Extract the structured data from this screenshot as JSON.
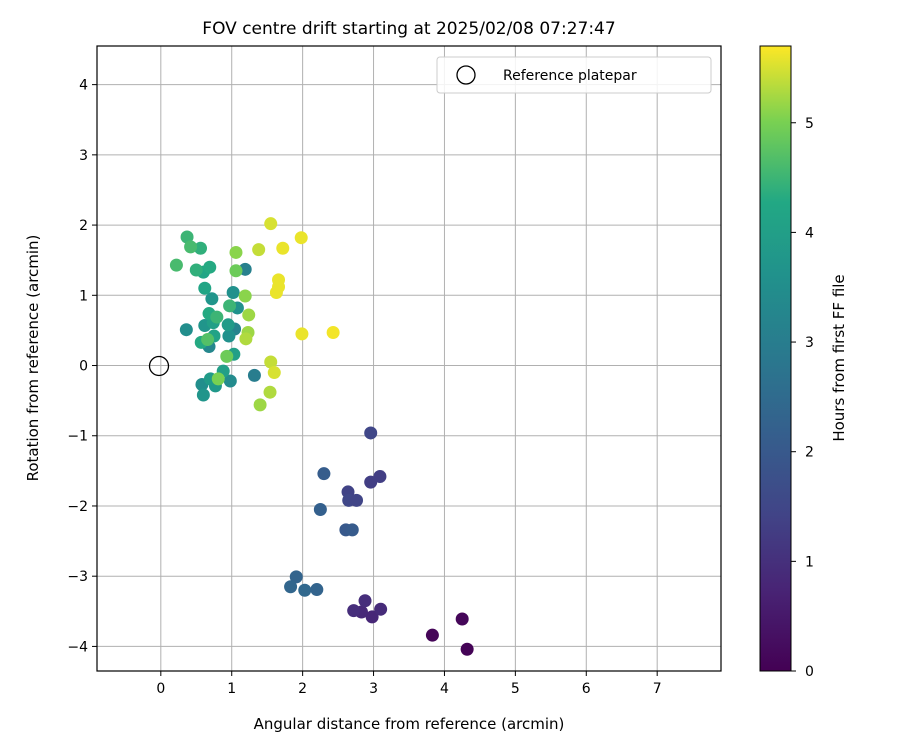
{
  "chart_data": {
    "type": "scatter",
    "title": "FOV centre drift starting at 2025/02/08 07:27:47",
    "xlabel": "Angular distance from reference (arcmin)",
    "ylabel": "Rotation from reference (arcmin)",
    "xlim": [
      -0.9,
      7.9
    ],
    "ylim": [
      -4.35,
      4.55
    ],
    "xticks": [
      0,
      1,
      2,
      3,
      4,
      5,
      6,
      7
    ],
    "yticks": [
      -4,
      -3,
      -2,
      -1,
      0,
      1,
      2,
      3,
      4
    ],
    "grid": true,
    "legend": {
      "placement": "top-right",
      "entries": [
        "Reference platepar"
      ]
    },
    "reference_point": {
      "x": 0,
      "y": 0,
      "label": "Reference platepar"
    },
    "colorbar": {
      "label": "Hours from first FF file",
      "colormap": "viridis",
      "range": [
        0,
        5.7
      ],
      "ticks": [
        0,
        1,
        2,
        3,
        4,
        5
      ]
    },
    "points": [
      {
        "x": 4.32,
        "y": -4.04,
        "c": 0.05
      },
      {
        "x": 3.83,
        "y": -3.84,
        "c": 0.1
      },
      {
        "x": 4.25,
        "y": -3.61,
        "c": 0.12
      },
      {
        "x": 2.98,
        "y": -3.58,
        "c": 0.8
      },
      {
        "x": 3.1,
        "y": -3.47,
        "c": 0.9
      },
      {
        "x": 2.83,
        "y": -3.51,
        "c": 0.85
      },
      {
        "x": 2.72,
        "y": -3.49,
        "c": 0.95
      },
      {
        "x": 2.88,
        "y": -3.35,
        "c": 0.95
      },
      {
        "x": 2.96,
        "y": -0.96,
        "c": 1.5
      },
      {
        "x": 3.09,
        "y": -1.58,
        "c": 1.3
      },
      {
        "x": 2.96,
        "y": -1.66,
        "c": 1.3
      },
      {
        "x": 2.64,
        "y": -1.8,
        "c": 1.4
      },
      {
        "x": 2.65,
        "y": -1.92,
        "c": 1.5
      },
      {
        "x": 2.76,
        "y": -1.92,
        "c": 1.45
      },
      {
        "x": 2.3,
        "y": -1.54,
        "c": 2.1
      },
      {
        "x": 2.25,
        "y": -2.05,
        "c": 2.2
      },
      {
        "x": 2.61,
        "y": -2.34,
        "c": 2.0
      },
      {
        "x": 2.7,
        "y": -2.34,
        "c": 2.05
      },
      {
        "x": 1.91,
        "y": -3.01,
        "c": 2.3
      },
      {
        "x": 1.83,
        "y": -3.15,
        "c": 2.35
      },
      {
        "x": 2.03,
        "y": -3.2,
        "c": 2.4
      },
      {
        "x": 2.2,
        "y": -3.19,
        "c": 2.3
      },
      {
        "x": 1.32,
        "y": -0.14,
        "c": 3.0
      },
      {
        "x": 1.19,
        "y": 1.37,
        "c": 3.1
      },
      {
        "x": 1.04,
        "y": 0.52,
        "c": 3.2
      },
      {
        "x": 0.68,
        "y": 0.27,
        "c": 3.3
      },
      {
        "x": 0.98,
        "y": -0.22,
        "c": 3.4
      },
      {
        "x": 0.58,
        "y": -0.27,
        "c": 3.5
      },
      {
        "x": 0.36,
        "y": 0.51,
        "c": 3.5
      },
      {
        "x": 0.96,
        "y": 0.42,
        "c": 3.6
      },
      {
        "x": 0.62,
        "y": 0.57,
        "c": 3.7
      },
      {
        "x": 0.6,
        "y": -0.42,
        "c": 3.7
      },
      {
        "x": 0.77,
        "y": -0.29,
        "c": 3.8
      },
      {
        "x": 1.02,
        "y": 1.04,
        "c": 3.6
      },
      {
        "x": 0.72,
        "y": 0.95,
        "c": 3.7
      },
      {
        "x": 1.08,
        "y": 0.82,
        "c": 3.6
      },
      {
        "x": 0.95,
        "y": 0.58,
        "c": 3.9
      },
      {
        "x": 0.7,
        "y": -0.19,
        "c": 3.9
      },
      {
        "x": 0.88,
        "y": -0.08,
        "c": 4.0
      },
      {
        "x": 0.75,
        "y": 0.42,
        "c": 4.1
      },
      {
        "x": 0.74,
        "y": 0.61,
        "c": 4.0
      },
      {
        "x": 1.03,
        "y": 0.16,
        "c": 4.0
      },
      {
        "x": 0.57,
        "y": 0.33,
        "c": 4.3
      },
      {
        "x": 0.68,
        "y": 0.74,
        "c": 4.3
      },
      {
        "x": 0.62,
        "y": 1.1,
        "c": 4.2
      },
      {
        "x": 0.6,
        "y": 1.33,
        "c": 4.2
      },
      {
        "x": 0.69,
        "y": 1.4,
        "c": 4.3
      },
      {
        "x": 0.5,
        "y": 1.36,
        "c": 4.4
      },
      {
        "x": 0.56,
        "y": 1.67,
        "c": 4.4
      },
      {
        "x": 0.37,
        "y": 1.83,
        "c": 4.5
      },
      {
        "x": 0.42,
        "y": 1.69,
        "c": 4.6
      },
      {
        "x": 0.22,
        "y": 1.43,
        "c": 4.6
      },
      {
        "x": 0.97,
        "y": 0.85,
        "c": 4.5
      },
      {
        "x": 0.79,
        "y": 0.69,
        "c": 4.5
      },
      {
        "x": 0.66,
        "y": 0.37,
        "c": 4.7
      },
      {
        "x": 0.93,
        "y": 0.13,
        "c": 4.9
      },
      {
        "x": 0.81,
        "y": -0.19,
        "c": 5.0
      },
      {
        "x": 1.06,
        "y": 1.61,
        "c": 5.1
      },
      {
        "x": 1.06,
        "y": 1.35,
        "c": 4.9
      },
      {
        "x": 1.19,
        "y": 0.99,
        "c": 5.1
      },
      {
        "x": 1.24,
        "y": 0.72,
        "c": 5.2
      },
      {
        "x": 1.23,
        "y": 0.47,
        "c": 5.2
      },
      {
        "x": 1.2,
        "y": 0.38,
        "c": 5.3
      },
      {
        "x": 1.38,
        "y": 1.65,
        "c": 5.4
      },
      {
        "x": 1.55,
        "y": 2.02,
        "c": 5.5
      },
      {
        "x": 1.72,
        "y": 1.67,
        "c": 5.6
      },
      {
        "x": 1.98,
        "y": 1.82,
        "c": 5.6
      },
      {
        "x": 1.66,
        "y": 1.22,
        "c": 5.6
      },
      {
        "x": 1.66,
        "y": 1.12,
        "c": 5.6
      },
      {
        "x": 1.63,
        "y": 1.04,
        "c": 5.6
      },
      {
        "x": 1.55,
        "y": 0.05,
        "c": 5.4
      },
      {
        "x": 1.6,
        "y": -0.1,
        "c": 5.5
      },
      {
        "x": 1.54,
        "y": -0.38,
        "c": 5.3
      },
      {
        "x": 1.4,
        "y": -0.56,
        "c": 5.2
      },
      {
        "x": 1.99,
        "y": 0.45,
        "c": 5.6
      },
      {
        "x": 2.43,
        "y": 0.47,
        "c": 5.65
      }
    ]
  }
}
